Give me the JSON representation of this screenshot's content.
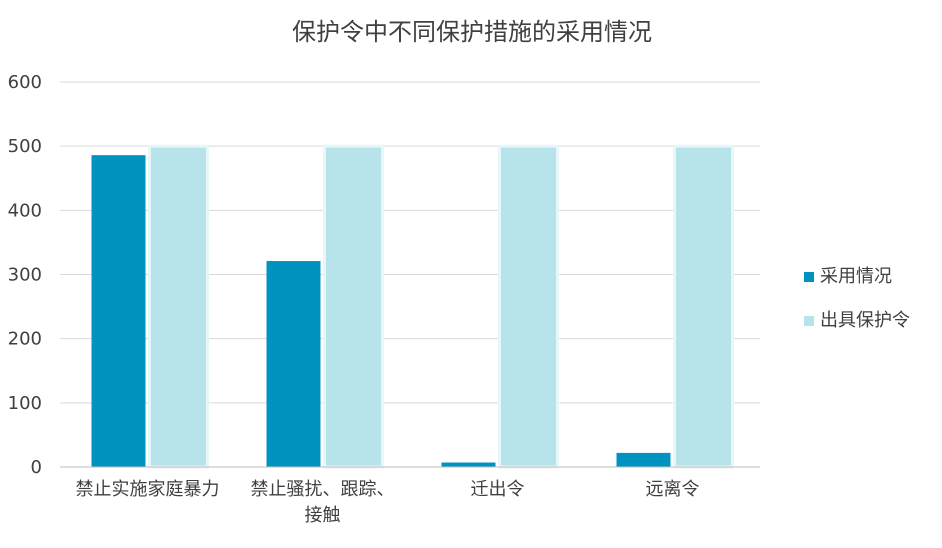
{
  "chart_data": {
    "type": "bar",
    "title": "保护令中不同保护措施的采用情况",
    "xlabel": "",
    "ylabel": "",
    "categories": [
      [
        "禁止实施家庭暴力"
      ],
      [
        "禁止骚扰、跟踪、",
        "接触"
      ],
      [
        "迁出令"
      ],
      [
        "远离令"
      ]
    ],
    "series": [
      {
        "name": "采用情况",
        "color": "#0093BF",
        "values": [
          486,
          321,
          7,
          22
        ]
      },
      {
        "name": "出具保护令",
        "color": "#B7E3EA",
        "values": [
          500,
          500,
          500,
          500
        ]
      }
    ],
    "ylim": [
      0,
      600
    ],
    "yticks": [
      0,
      100,
      200,
      300,
      400,
      500,
      600
    ],
    "grid": true,
    "legend_position": "right"
  }
}
